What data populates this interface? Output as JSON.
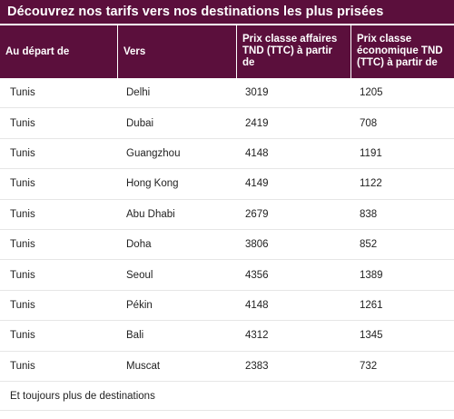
{
  "title": "Découvrez nos tarifs vers nos destinations les plus prisées",
  "colors": {
    "header_bg": "#5b0f3c",
    "header_text": "#ffffff",
    "row_divider": "#e6e6e6"
  },
  "table": {
    "headers": [
      "Au départ de",
      "Vers",
      "Prix classe affaires TND (TTC) à partir de",
      "Prix classe économique TND (TTC) à partir de"
    ],
    "rows": [
      [
        "Tunis",
        "Delhi",
        "3019",
        "1205"
      ],
      [
        "Tunis",
        "Dubai",
        "2419",
        "708"
      ],
      [
        "Tunis",
        "Guangzhou",
        "4148",
        "1191"
      ],
      [
        "Tunis",
        "Hong Kong",
        "4149",
        "1122"
      ],
      [
        "Tunis",
        "Abu Dhabi",
        "2679",
        "838"
      ],
      [
        "Tunis",
        "Doha",
        "3806",
        "852"
      ],
      [
        "Tunis",
        "Seoul",
        "4356",
        "1389"
      ],
      [
        "Tunis",
        "Pékin",
        "4148",
        "1261"
      ],
      [
        "Tunis",
        "Bali",
        "4312",
        "1345"
      ],
      [
        "Tunis",
        "Muscat",
        "2383",
        "732"
      ]
    ]
  },
  "footer_text": "Et toujours plus de destinations"
}
